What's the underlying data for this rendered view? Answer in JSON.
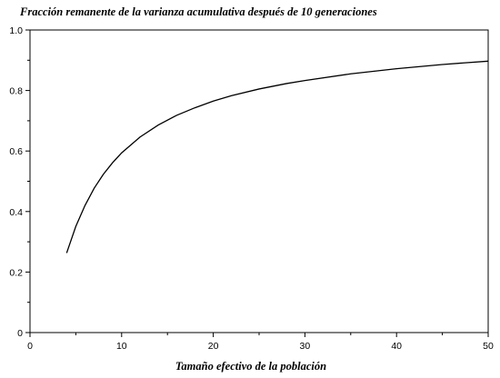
{
  "chart_data": {
    "type": "line",
    "title": "Fracción remanente de la varianza acumulativa después de 10 generaciones",
    "xlabel": "Tamaño efectivo de la población",
    "ylabel": "",
    "xlim": [
      0,
      50
    ],
    "ylim": [
      0,
      1.0
    ],
    "x_ticks": [
      0,
      10,
      20,
      30,
      40,
      50
    ],
    "x_tick_labels": [
      "0",
      "10",
      "20",
      "30",
      "40",
      "50"
    ],
    "y_ticks": [
      0,
      0.2,
      0.4,
      0.6,
      0.8,
      1.0
    ],
    "y_tick_labels": [
      "0",
      "0.2",
      "0.4",
      "0.6",
      "0.8",
      "1.0"
    ],
    "grid": false,
    "series": [
      {
        "x": [
          4,
          5,
          6,
          7,
          8,
          9,
          10,
          12,
          14,
          16,
          18,
          20,
          22,
          25,
          28,
          30,
          35,
          40,
          45,
          50
        ],
        "y": [
          0.263,
          0.351,
          0.42,
          0.477,
          0.523,
          0.561,
          0.594,
          0.646,
          0.686,
          0.718,
          0.743,
          0.765,
          0.783,
          0.805,
          0.823,
          0.833,
          0.855,
          0.872,
          0.886,
          0.897
        ]
      }
    ]
  }
}
